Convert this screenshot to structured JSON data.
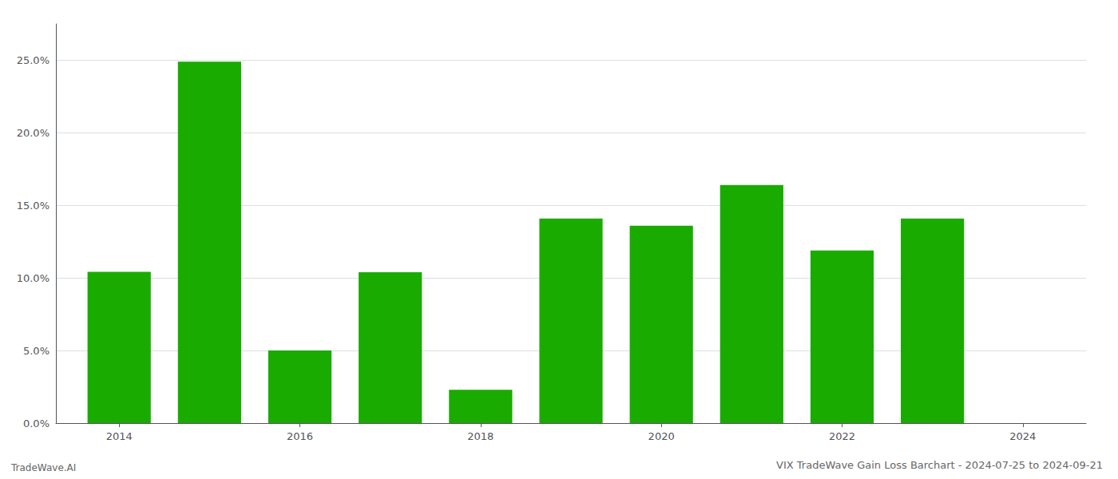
{
  "chart_data": {
    "type": "bar",
    "title": "VIX TradeWave Gain Loss Barchart - 2024-07-25 to 2024-09-21",
    "annotations": [
      "TradeWave.AI"
    ],
    "x": [
      2014,
      2015,
      2016,
      2017,
      2018,
      2019,
      2020,
      2021,
      2022,
      2023
    ],
    "values": [
      0.1042,
      0.249,
      0.05,
      0.104,
      0.023,
      0.141,
      0.136,
      0.164,
      0.119,
      0.141
    ],
    "color": "#1aab00",
    "xlim": [
      2013.3,
      2024.7
    ],
    "xticks": [
      2014,
      2016,
      2018,
      2020,
      2022,
      2024
    ],
    "ylim": [
      0,
      0.275
    ],
    "yticks": [
      {
        "value": 0.0,
        "label": "0.0%"
      },
      {
        "value": 0.05,
        "label": "5.0%"
      },
      {
        "value": 0.1,
        "label": "10.0%"
      },
      {
        "value": 0.15,
        "label": "15.0%"
      },
      {
        "value": 0.2,
        "label": "20.0%"
      },
      {
        "value": 0.25,
        "label": "25.0%"
      }
    ],
    "grid": true
  }
}
